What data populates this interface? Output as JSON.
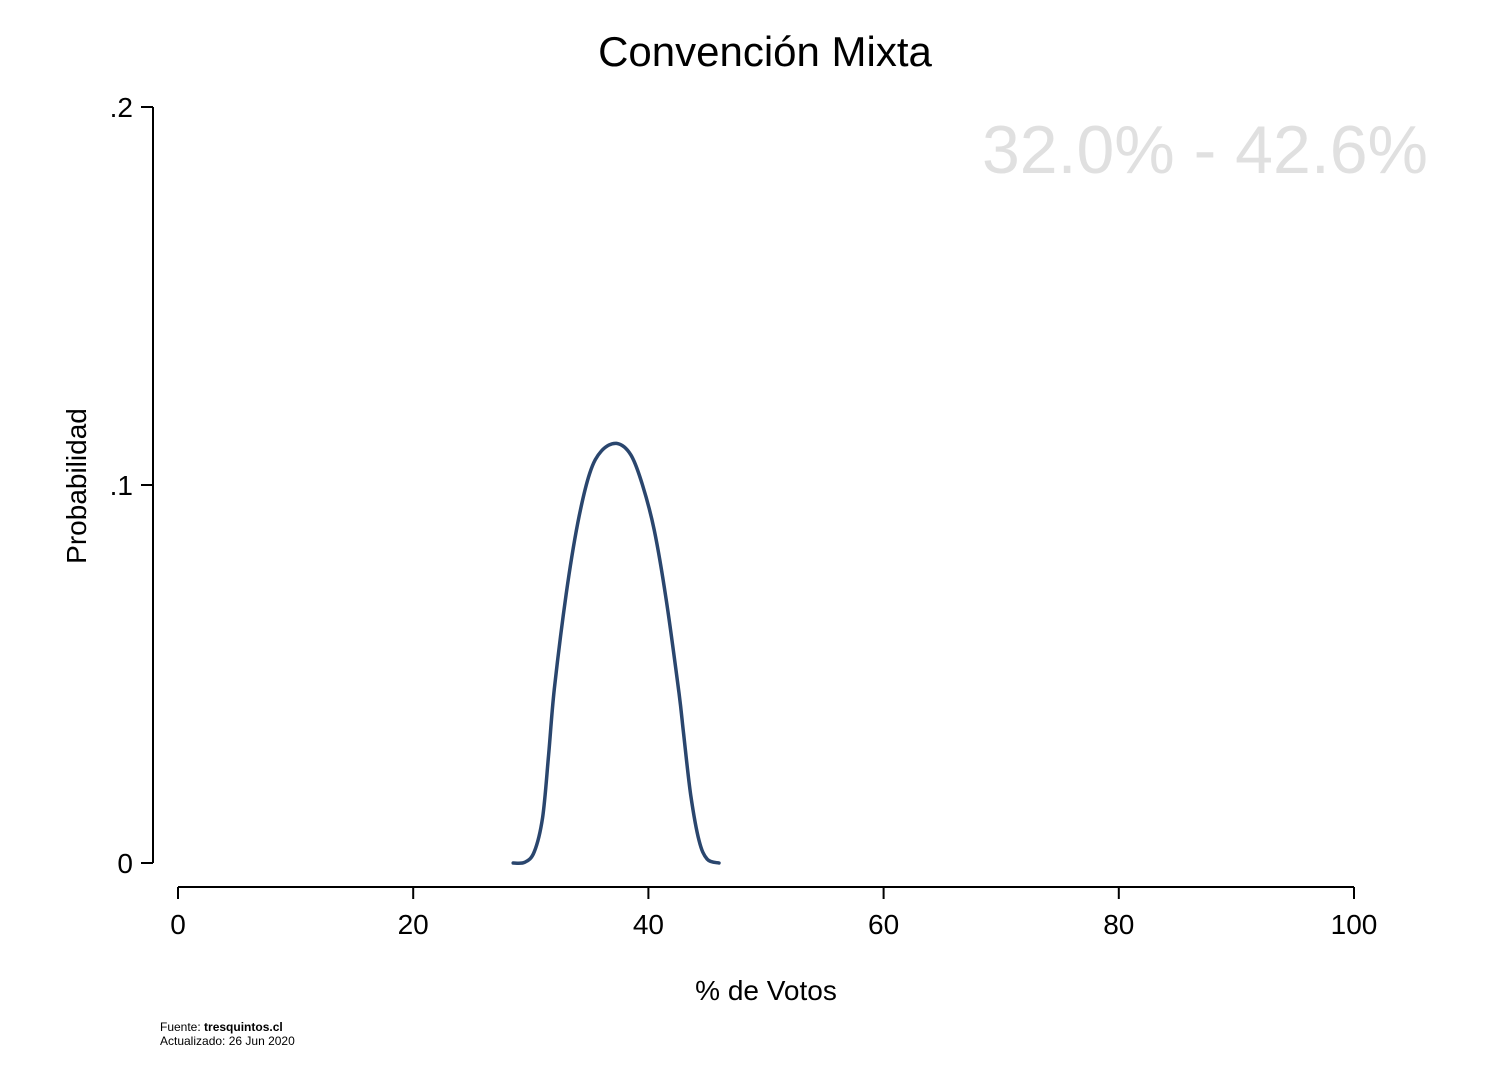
{
  "chart_data": {
    "type": "line",
    "title": "Convención Mixta",
    "xlabel": "% de Votos",
    "ylabel": "Probabilidad",
    "xlim": [
      0,
      100
    ],
    "ylim": [
      0,
      0.2
    ],
    "x_ticks": [
      {
        "value": 0,
        "label": "0"
      },
      {
        "value": 20,
        "label": "20"
      },
      {
        "value": 40,
        "label": "40"
      },
      {
        "value": 60,
        "label": "60"
      },
      {
        "value": 80,
        "label": "80"
      },
      {
        "value": 100,
        "label": "100"
      }
    ],
    "y_ticks": [
      {
        "value": 0,
        "label": "0"
      },
      {
        "value": 0.1,
        "label": ".1"
      },
      {
        "value": 0.2,
        "label": ".2"
      }
    ],
    "annotation": "32.0% - 42.6%",
    "grid": false,
    "colors": {
      "line": "#2a466e",
      "annotation": "#e0e0e0",
      "axis": "#000000"
    },
    "series": [
      {
        "x": [
          28.5,
          29.5,
          30.3,
          31.0,
          31.5,
          32.0,
          33.0,
          34.0,
          35.0,
          36.0,
          37.3,
          38.5,
          39.5,
          40.5,
          41.5,
          42.6,
          43.0,
          43.6,
          44.3,
          45.0,
          46.0
        ],
        "values": [
          0.0,
          0.0002,
          0.003,
          0.012,
          0.028,
          0.046,
          0.071,
          0.09,
          0.103,
          0.109,
          0.111,
          0.108,
          0.1,
          0.088,
          0.07,
          0.045,
          0.034,
          0.018,
          0.006,
          0.001,
          0.0
        ]
      }
    ]
  },
  "footer": {
    "source_prefix": "Fuente: ",
    "source_site": "tresquintos.cl",
    "updated": "Actualizado: 26 Jun 2020"
  }
}
